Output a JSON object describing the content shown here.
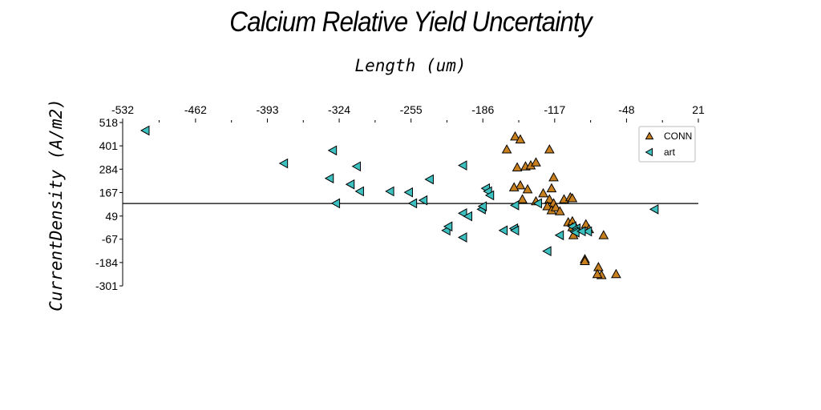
{
  "chart_data": {
    "type": "scatter",
    "title": "Calcium Relative Yield Uncertainty",
    "xlabel": "Length (um)",
    "ylabel": "CurrentDensity (A/m2)",
    "xlim": [
      -532,
      21
    ],
    "ylim": [
      -301,
      518
    ],
    "x_ticks": [
      "-532",
      "-462",
      "-393",
      "-324",
      "-255",
      "-186",
      "-117",
      "-48",
      "21"
    ],
    "y_ticks": [
      "518",
      "401",
      "284",
      "167",
      "49",
      "-67",
      "-184",
      "-301"
    ],
    "x_tick_values": [
      -532,
      -462,
      -393,
      -324,
      -255,
      -186,
      -117,
      -48,
      21
    ],
    "y_tick_values": [
      518,
      401,
      284,
      167,
      49,
      -67,
      -184,
      -301
    ],
    "hline": 112,
    "grid": false,
    "legend_position": "top-right",
    "series": [
      {
        "name": "CONN",
        "marker": "triangle-up",
        "color": "#c8801e",
        "points": [
          [
            -163,
            383
          ],
          [
            -155,
            448
          ],
          [
            -150,
            433
          ],
          [
            -122,
            383
          ],
          [
            -145,
            298
          ],
          [
            -140,
            303
          ],
          [
            -135,
            318
          ],
          [
            -153,
            293
          ],
          [
            -150,
            203
          ],
          [
            -156,
            193
          ],
          [
            -143,
            183
          ],
          [
            -128,
            163
          ],
          [
            -120,
            188
          ],
          [
            -118,
            243
          ],
          [
            -148,
            133
          ],
          [
            -135,
            123
          ],
          [
            -122,
            133
          ],
          [
            -118,
            113
          ],
          [
            -124,
            98
          ],
          [
            -120,
            78
          ],
          [
            -116,
            93
          ],
          [
            -112,
            73
          ],
          [
            -108,
            133
          ],
          [
            -102,
            143
          ],
          [
            -100,
            138
          ],
          [
            -104,
            18
          ],
          [
            -100,
            23
          ],
          [
            -100,
            -7
          ],
          [
            -99,
            -47
          ],
          [
            -87,
            8
          ],
          [
            -84,
            -17
          ],
          [
            -70,
            -47
          ],
          [
            -88,
            -167
          ],
          [
            -88,
            -177
          ],
          [
            -75,
            -207
          ],
          [
            -72,
            -247
          ],
          [
            -76,
            -242
          ],
          [
            -58,
            -242
          ]
        ]
      },
      {
        "name": "art",
        "marker": "triangle-left",
        "color": "#3cc0c0",
        "points": [
          [
            -510,
            478
          ],
          [
            -377,
            313
          ],
          [
            -330,
            378
          ],
          [
            -333,
            238
          ],
          [
            -313,
            208
          ],
          [
            -307,
            298
          ],
          [
            -304,
            173
          ],
          [
            -327,
            113
          ],
          [
            -275,
            173
          ],
          [
            -257,
            168
          ],
          [
            -253,
            113
          ],
          [
            -243,
            128
          ],
          [
            -237,
            233
          ],
          [
            -221,
            -23
          ],
          [
            -219,
            -3
          ],
          [
            -205,
            303
          ],
          [
            -205,
            63
          ],
          [
            -205,
            -58
          ],
          [
            -200,
            48
          ],
          [
            -187,
            83
          ],
          [
            -186,
            98
          ],
          [
            -183,
            188
          ],
          [
            -181,
            173
          ],
          [
            -179,
            153
          ],
          [
            -166,
            -23
          ],
          [
            -156,
            -13
          ],
          [
            -155,
            -23
          ],
          [
            -155,
            103
          ],
          [
            -133,
            113
          ],
          [
            -124,
            -127
          ],
          [
            -112,
            -47
          ],
          [
            -100,
            -3
          ],
          [
            -96,
            -13
          ],
          [
            -98,
            -28
          ],
          [
            -97,
            -33
          ],
          [
            -85,
            -28
          ],
          [
            -91,
            -27
          ],
          [
            -21,
            83
          ]
        ]
      }
    ]
  }
}
